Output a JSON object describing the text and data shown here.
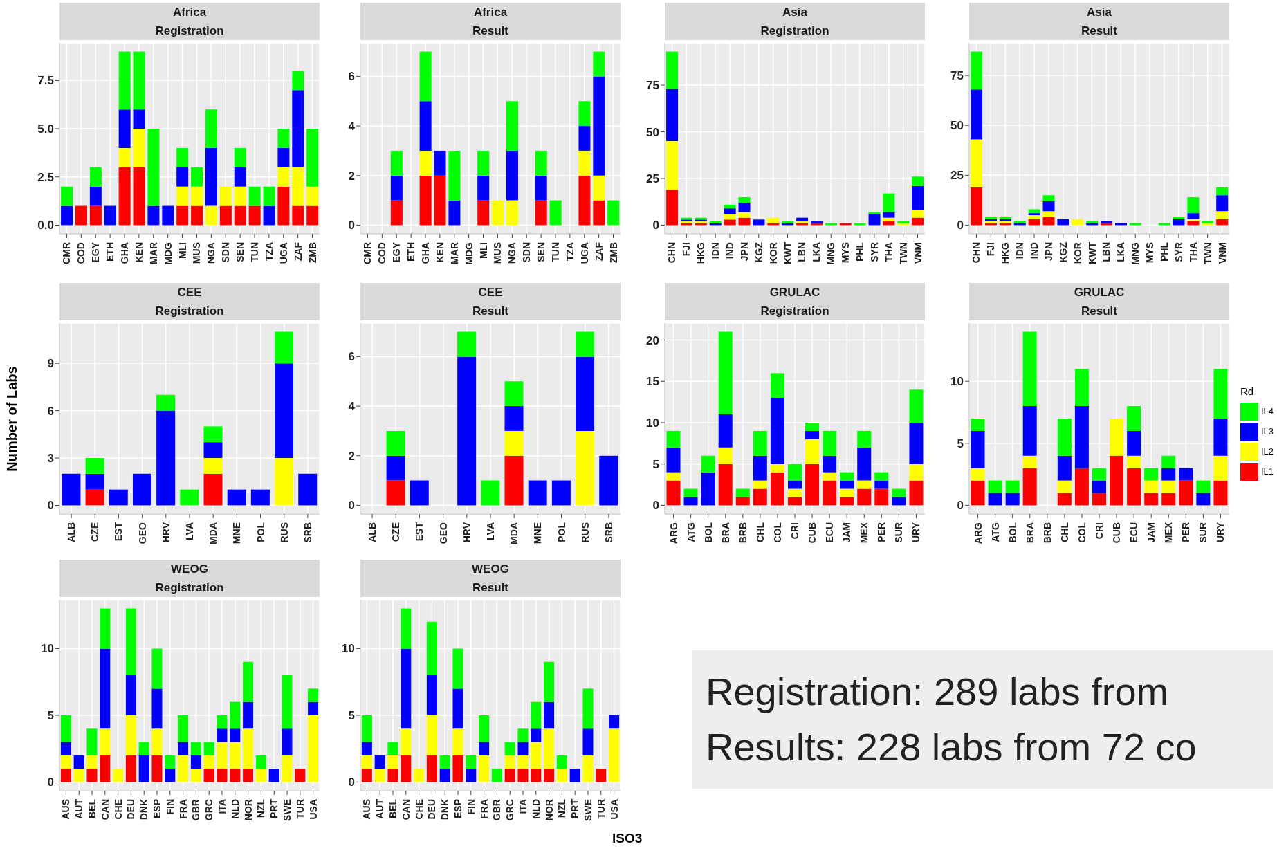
{
  "chart_data": [
    {
      "type": "bar",
      "title": "Africa",
      "subtitle": "Registration",
      "stacked": true,
      "grid": true,
      "categories": [
        "CMR",
        "COD",
        "EGY",
        "ETH",
        "GHA",
        "KEN",
        "MAR",
        "MDG",
        "MLI",
        "MUS",
        "NGA",
        "SDN",
        "SEN",
        "TUN",
        "TZA",
        "UGA",
        "ZAF",
        "ZMB"
      ],
      "ylim": [
        -0.45,
        9.45
      ],
      "yticks": [
        {
          "value": 0,
          "label": "0.0"
        },
        {
          "value": 2.5,
          "label": "2.5"
        },
        {
          "value": 5,
          "label": "5.0"
        },
        {
          "value": 7.5,
          "label": "7.5"
        }
      ],
      "series": [
        {
          "color": "#ff0000",
          "values": [
            0,
            1,
            1,
            0,
            3,
            3,
            0,
            0,
            1,
            1,
            0,
            1,
            1,
            1,
            0,
            2,
            1,
            1
          ]
        },
        {
          "color": "#ffff00",
          "values": [
            0,
            0,
            0,
            0,
            1,
            2,
            0,
            0,
            1,
            1,
            1,
            1,
            1,
            0,
            0,
            1,
            2,
            1
          ]
        },
        {
          "color": "#0000ff",
          "values": [
            1,
            0,
            1,
            1,
            2,
            1,
            1,
            1,
            1,
            0,
            3,
            0,
            1,
            0,
            1,
            1,
            4,
            0
          ]
        },
        {
          "color": "#00ff00",
          "values": [
            1,
            0,
            1,
            0,
            3,
            3,
            4,
            0,
            1,
            1,
            2,
            0,
            1,
            1,
            1,
            1,
            1,
            3
          ]
        }
      ]
    },
    {
      "type": "bar",
      "title": "Africa",
      "subtitle": "Result",
      "stacked": true,
      "grid": true,
      "categories": [
        "CMR",
        "COD",
        "EGY",
        "ETH",
        "GHA",
        "KEN",
        "MAR",
        "MDG",
        "MLI",
        "MUS",
        "NGA",
        "SDN",
        "SEN",
        "TUN",
        "TZA",
        "UGA",
        "ZAF",
        "ZMB"
      ],
      "ylim": [
        -0.35,
        7.35
      ],
      "yticks": [
        0,
        2,
        4,
        6
      ],
      "series": [
        {
          "color": "#ff0000",
          "values": [
            0,
            0,
            1,
            0,
            2,
            2,
            0,
            0,
            1,
            0,
            0,
            0,
            1,
            0,
            0,
            2,
            1,
            0
          ]
        },
        {
          "color": "#ffff00",
          "values": [
            0,
            0,
            0,
            0,
            1,
            0,
            0,
            0,
            0,
            1,
            1,
            0,
            0,
            0,
            0,
            1,
            1,
            0
          ]
        },
        {
          "color": "#0000ff",
          "values": [
            0,
            0,
            1,
            0,
            2,
            1,
            1,
            0,
            1,
            0,
            2,
            0,
            1,
            0,
            0,
            1,
            4,
            0
          ]
        },
        {
          "color": "#00ff00",
          "values": [
            0,
            0,
            1,
            0,
            2,
            0,
            2,
            0,
            1,
            0,
            2,
            0,
            1,
            1,
            0,
            1,
            1,
            1
          ]
        }
      ]
    },
    {
      "type": "bar",
      "title": "Asia",
      "subtitle": "Registration",
      "stacked": true,
      "grid": true,
      "categories": [
        "CHN",
        "FJI",
        "HKG",
        "IDN",
        "IND",
        "JPN",
        "KGZ",
        "KOR",
        "KWT",
        "LBN",
        "LKA",
        "MNG",
        "MYS",
        "PHL",
        "SYR",
        "THA",
        "TWN",
        "VNM"
      ],
      "ylim": [
        -4.65,
        97.65
      ],
      "yticks": [
        0,
        25,
        50,
        75
      ],
      "series": [
        {
          "color": "#ff0000",
          "values": [
            19,
            1,
            1,
            0,
            3,
            4,
            0,
            1,
            0,
            1,
            1,
            0,
            1,
            0,
            0,
            2,
            0,
            4
          ]
        },
        {
          "color": "#ffff00",
          "values": [
            26,
            1,
            1,
            0,
            3,
            3,
            0,
            3,
            0,
            1,
            0,
            0,
            0,
            0,
            0,
            2,
            1,
            4
          ]
        },
        {
          "color": "#0000ff",
          "values": [
            28,
            1,
            1,
            1,
            3,
            5,
            3,
            0,
            1,
            2,
            1,
            0,
            0,
            0,
            6,
            3,
            0,
            13
          ]
        },
        {
          "color": "#00ff00",
          "values": [
            20,
            1,
            1,
            1,
            2,
            3,
            0,
            0,
            1,
            0,
            0,
            1,
            0,
            1,
            1,
            10,
            1,
            5
          ]
        }
      ]
    },
    {
      "type": "bar",
      "title": "Asia",
      "subtitle": "Result",
      "stacked": true,
      "grid": true,
      "categories": [
        "CHN",
        "FJI",
        "HKG",
        "IDN",
        "IND",
        "JPN",
        "KGZ",
        "KOR",
        "KWT",
        "LBN",
        "LKA",
        "MNG",
        "MYS",
        "PHL",
        "SYR",
        "THA",
        "TWN",
        "VNM"
      ],
      "ylim": [
        -4.35,
        91.35
      ],
      "yticks": [
        0,
        25,
        50,
        75
      ],
      "series": [
        {
          "color": "#ff0000",
          "values": [
            19,
            1,
            1,
            0,
            3,
            4,
            0,
            0,
            0,
            1,
            0,
            0,
            0,
            0,
            0,
            2,
            0,
            3
          ]
        },
        {
          "color": "#ffff00",
          "values": [
            24,
            1,
            1,
            0,
            2,
            3,
            0,
            3,
            0,
            0,
            0,
            0,
            0,
            0,
            0,
            1,
            1,
            4
          ]
        },
        {
          "color": "#0000ff",
          "values": [
            25,
            1,
            1,
            1,
            1,
            5,
            3,
            0,
            1,
            1,
            1,
            0,
            0,
            0,
            3,
            3,
            0,
            8
          ]
        },
        {
          "color": "#00ff00",
          "values": [
            19,
            1,
            1,
            1,
            2,
            3,
            0,
            0,
            1,
            0,
            0,
            1,
            0,
            1,
            1,
            8,
            1,
            4
          ]
        }
      ]
    },
    {
      "type": "bar",
      "title": "CEE",
      "subtitle": "Registration",
      "ylabel": "Number of Labs",
      "stacked": true,
      "grid": true,
      "categories": [
        "ALB",
        "CZE",
        "EST",
        "GEO",
        "HRV",
        "LVA",
        "MDA",
        "MNE",
        "POL",
        "RUS",
        "SRB"
      ],
      "ylim": [
        -0.55,
        11.55
      ],
      "yticks": [
        0,
        3,
        6,
        9
      ],
      "series": [
        {
          "color": "#ff0000",
          "values": [
            0,
            1,
            0,
            0,
            0,
            0,
            2,
            0,
            0,
            0,
            0
          ]
        },
        {
          "color": "#ffff00",
          "values": [
            0,
            0,
            0,
            0,
            0,
            0,
            1,
            0,
            0,
            3,
            0
          ]
        },
        {
          "color": "#0000ff",
          "values": [
            2,
            1,
            1,
            2,
            6,
            0,
            1,
            1,
            1,
            6,
            2
          ]
        },
        {
          "color": "#00ff00",
          "values": [
            0,
            1,
            0,
            0,
            1,
            1,
            1,
            0,
            0,
            2,
            0
          ]
        }
      ]
    },
    {
      "type": "bar",
      "title": "CEE",
      "subtitle": "Result",
      "stacked": true,
      "grid": true,
      "categories": [
        "ALB",
        "CZE",
        "EST",
        "GEO",
        "HRV",
        "LVA",
        "MDA",
        "MNE",
        "POL",
        "RUS",
        "SRB"
      ],
      "ylim": [
        -0.35,
        7.35
      ],
      "yticks": [
        0,
        2,
        4,
        6
      ],
      "series": [
        {
          "color": "#ff0000",
          "values": [
            0,
            1,
            0,
            0,
            0,
            0,
            2,
            0,
            0,
            0,
            0
          ]
        },
        {
          "color": "#ffff00",
          "values": [
            0,
            0,
            0,
            0,
            0,
            0,
            1,
            0,
            0,
            3,
            0
          ]
        },
        {
          "color": "#0000ff",
          "values": [
            0,
            1,
            1,
            0,
            6,
            0,
            1,
            1,
            1,
            3,
            2
          ]
        },
        {
          "color": "#00ff00",
          "values": [
            0,
            1,
            0,
            0,
            1,
            1,
            1,
            0,
            0,
            1,
            0
          ]
        }
      ]
    },
    {
      "type": "bar",
      "title": "GRULAC",
      "subtitle": "Registration",
      "stacked": true,
      "grid": true,
      "categories": [
        "ARG",
        "ATG",
        "BOL",
        "BRA",
        "BRB",
        "CHL",
        "COL",
        "CRI",
        "CUB",
        "ECU",
        "JAM",
        "MEX",
        "PER",
        "SUR",
        "URY"
      ],
      "ylim": [
        -1.05,
        22.05
      ],
      "yticks": [
        0,
        5,
        10,
        15,
        20
      ],
      "series": [
        {
          "color": "#ff0000",
          "values": [
            3,
            0,
            0,
            5,
            1,
            2,
            4,
            1,
            5,
            3,
            1,
            2,
            2,
            0,
            3
          ]
        },
        {
          "color": "#ffff00",
          "values": [
            1,
            0,
            0,
            2,
            0,
            1,
            1,
            1,
            3,
            1,
            1,
            1,
            0,
            0,
            2
          ]
        },
        {
          "color": "#0000ff",
          "values": [
            3,
            1,
            4,
            4,
            0,
            3,
            8,
            1,
            1,
            2,
            1,
            4,
            1,
            1,
            5
          ]
        },
        {
          "color": "#00ff00",
          "values": [
            2,
            1,
            2,
            10,
            1,
            3,
            3,
            2,
            1,
            3,
            1,
            2,
            1,
            1,
            4
          ]
        }
      ]
    },
    {
      "type": "bar",
      "title": "GRULAC",
      "subtitle": "Result",
      "stacked": true,
      "grid": true,
      "legend": "right",
      "legend_title": "Rd",
      "categories": [
        "ARG",
        "ATG",
        "BOL",
        "BRA",
        "BRB",
        "CHL",
        "COL",
        "CRI",
        "CUB",
        "ECU",
        "JAM",
        "MEX",
        "PER",
        "SUR",
        "URY"
      ],
      "ylim": [
        -0.7,
        14.7
      ],
      "yticks": [
        0,
        5,
        10
      ],
      "series": [
        {
          "name": "IL1",
          "color": "#ff0000",
          "values": [
            2,
            0,
            0,
            3,
            0,
            1,
            3,
            1,
            4,
            3,
            1,
            1,
            2,
            0,
            2
          ]
        },
        {
          "name": "IL2",
          "color": "#ffff00",
          "values": [
            1,
            0,
            0,
            1,
            0,
            1,
            0,
            0,
            3,
            1,
            1,
            1,
            0,
            0,
            2
          ]
        },
        {
          "name": "IL3",
          "color": "#0000ff",
          "values": [
            3,
            1,
            1,
            4,
            0,
            2,
            5,
            1,
            0,
            2,
            0,
            1,
            1,
            1,
            3
          ]
        },
        {
          "name": "IL4",
          "color": "#00ff00",
          "values": [
            1,
            1,
            1,
            6,
            0,
            3,
            3,
            1,
            0,
            2,
            1,
            1,
            0,
            1,
            4
          ]
        }
      ]
    },
    {
      "type": "bar",
      "title": "WEOG",
      "subtitle": "Registration",
      "stacked": true,
      "grid": true,
      "categories": [
        "AUS",
        "AUT",
        "BEL",
        "CAN",
        "CHE",
        "DEU",
        "DNK",
        "ESP",
        "FIN",
        "FRA",
        "GBR",
        "GRC",
        "ITA",
        "NLD",
        "NOR",
        "NZL",
        "PRT",
        "SWE",
        "TUR",
        "USA"
      ],
      "ylim": [
        -0.65,
        13.65
      ],
      "yticks": [
        0,
        5,
        10
      ],
      "series": [
        {
          "color": "#ff0000",
          "values": [
            1,
            0,
            1,
            2,
            0,
            2,
            0,
            2,
            0,
            0,
            0,
            1,
            1,
            1,
            1,
            0,
            0,
            0,
            1,
            0
          ]
        },
        {
          "color": "#ffff00",
          "values": [
            1,
            1,
            1,
            2,
            1,
            3,
            0,
            2,
            0,
            2,
            1,
            1,
            2,
            2,
            3,
            1,
            0,
            2,
            0,
            5
          ]
        },
        {
          "color": "#0000ff",
          "values": [
            1,
            1,
            0,
            6,
            0,
            3,
            2,
            3,
            1,
            1,
            1,
            0,
            1,
            1,
            2,
            0,
            1,
            2,
            0,
            1
          ]
        },
        {
          "color": "#00ff00",
          "values": [
            2,
            0,
            2,
            3,
            0,
            5,
            1,
            3,
            1,
            2,
            1,
            1,
            1,
            2,
            3,
            1,
            0,
            4,
            0,
            1
          ]
        }
      ]
    },
    {
      "type": "bar",
      "title": "WEOG",
      "subtitle": "Result",
      "xlabel": "ISO3",
      "stacked": true,
      "grid": true,
      "categories": [
        "AUS",
        "AUT",
        "BEL",
        "CAN",
        "CHE",
        "DEU",
        "DNK",
        "ESP",
        "FIN",
        "FRA",
        "GBR",
        "GRC",
        "ITA",
        "NLD",
        "NOR",
        "NZL",
        "PRT",
        "SWE",
        "TUR",
        "USA"
      ],
      "ylim": [
        -0.65,
        13.65
      ],
      "yticks": [
        0,
        5,
        10
      ],
      "series": [
        {
          "color": "#ff0000",
          "values": [
            1,
            0,
            1,
            2,
            0,
            2,
            0,
            2,
            0,
            0,
            0,
            1,
            1,
            1,
            1,
            0,
            0,
            0,
            1,
            0
          ]
        },
        {
          "color": "#ffff00",
          "values": [
            1,
            1,
            1,
            2,
            1,
            3,
            0,
            2,
            0,
            2,
            0,
            1,
            1,
            2,
            3,
            1,
            0,
            2,
            0,
            4
          ]
        },
        {
          "color": "#0000ff",
          "values": [
            1,
            1,
            0,
            6,
            0,
            3,
            1,
            3,
            1,
            1,
            0,
            0,
            1,
            1,
            2,
            0,
            1,
            2,
            0,
            1
          ]
        },
        {
          "color": "#00ff00",
          "values": [
            2,
            0,
            1,
            3,
            0,
            4,
            1,
            3,
            1,
            2,
            1,
            1,
            1,
            2,
            3,
            1,
            0,
            3,
            0,
            0
          ]
        }
      ]
    },
    {
      "type": "other",
      "annotations": [
        "Registration: 289 labs from",
        "Results: 228 labs from 72 co"
      ]
    }
  ]
}
